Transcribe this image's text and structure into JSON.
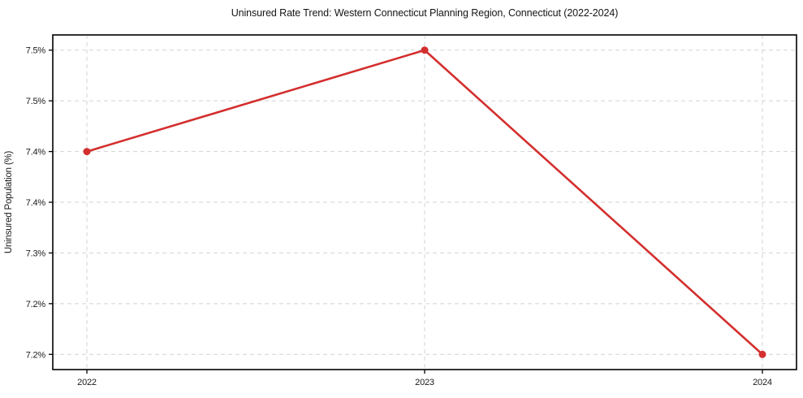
{
  "chart_data": {
    "type": "line",
    "title": "Uninsured Rate Trend: Western Connecticut Planning Region, Connecticut (2022-2024)",
    "xlabel": "",
    "ylabel": "Uninsured Population (%)",
    "x": [
      2022,
      2023,
      2024
    ],
    "series": [
      {
        "name": "Uninsured Population (%)",
        "values": [
          7.4,
          7.5,
          7.2
        ],
        "color": "#d32f2e",
        "marker": "circle",
        "line_width": 2.6,
        "marker_radius": 4.5
      }
    ],
    "x_ticks": [
      2022,
      2023,
      2024
    ],
    "x_tick_labels": [
      "2022",
      "2023",
      "2024"
    ],
    "y_ticks": [
      7.5,
      7.45,
      7.4,
      7.35,
      7.3,
      7.25,
      7.2
    ],
    "y_tick_labels": [
      "7.5%",
      "7.5%",
      "7.4%",
      "7.4%",
      "7.3%",
      "7.2%",
      "7.2%"
    ],
    "xlim": [
      2021.899,
      2024.101
    ],
    "ylim": [
      7.185,
      7.515
    ],
    "grid": true,
    "grid_line_style": "dashed",
    "legend": "none",
    "colors": {
      "line": "#d32f2e",
      "grid": "#cccccc",
      "axis": "#000000",
      "text": "#1a1a1a",
      "background": "#ffffff"
    }
  }
}
